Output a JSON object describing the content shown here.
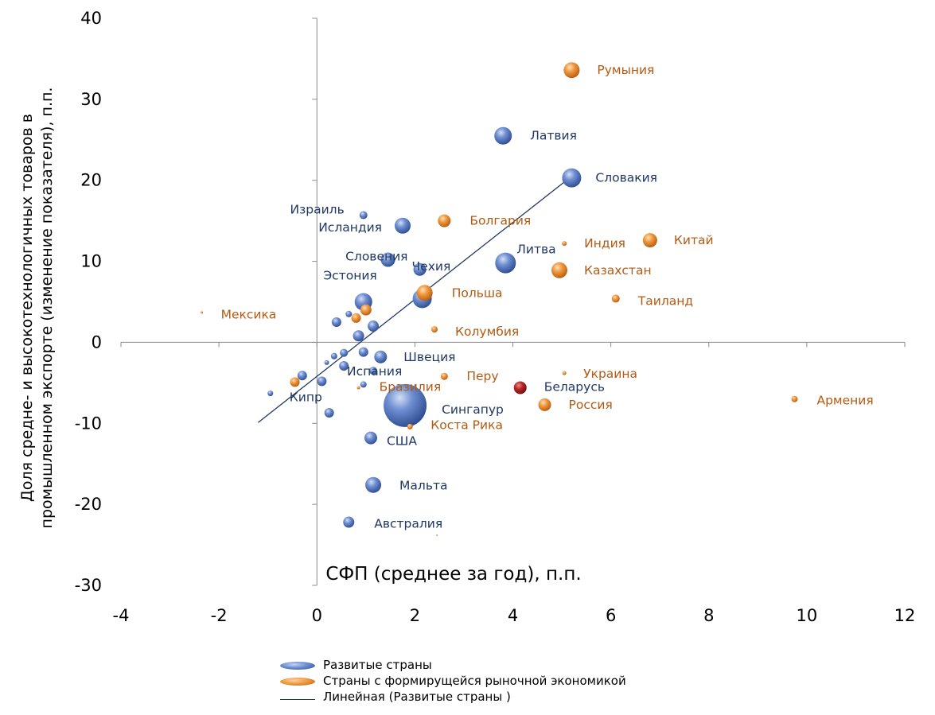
{
  "chart_data": {
    "type": "scatter",
    "xlabel": "СФП (среднее за год), п.п.",
    "ylabel_line1": "Доля средне- и высокотехнологичных товаров в",
    "ylabel_line2": "промышленном экспорте (изменение показателя), п.п.",
    "xlim": [
      -4,
      12
    ],
    "ylim": [
      -30,
      40
    ],
    "x_ticks": [
      "-4",
      "-2",
      "0",
      "2",
      "4",
      "6",
      "8",
      "10",
      "12"
    ],
    "y_ticks": [
      "40",
      "30",
      "20",
      "10",
      "0",
      "-10",
      "-20",
      "-30"
    ],
    "colors": {
      "developed": "#4f74c4",
      "developed_text": "#1f3864",
      "emerging": "#e8842a",
      "emerging_text": "#b35a12",
      "belarus": "#a11b1b",
      "trend": "#1f3864"
    },
    "series": [
      {
        "name": "Развитые страны",
        "points": [
          {
            "label": "Латвия",
            "x": 3.8,
            "y": 25.5,
            "size": 11
          },
          {
            "label": "Словакия",
            "x": 5.2,
            "y": 20.3,
            "size": 12
          },
          {
            "label": "Израиль",
            "x": 0.95,
            "y": 15.7,
            "size": 5
          },
          {
            "label": "Исландия",
            "x": 1.75,
            "y": 14.4,
            "size": 10
          },
          {
            "label": "Литва",
            "x": 3.85,
            "y": 9.8,
            "size": 13
          },
          {
            "label": "Чехия",
            "x": 2.1,
            "y": 9.0,
            "size": 8
          },
          {
            "label": "Словения",
            "x": 1.45,
            "y": 10.2,
            "size": 9
          },
          {
            "label": "Эстония",
            "x": 0.95,
            "y": 5.0,
            "size": 11
          },
          {
            "label": "",
            "x": 2.15,
            "y": 5.4,
            "size": 12
          },
          {
            "label": "",
            "x": 0.4,
            "y": 2.5,
            "size": 6
          },
          {
            "label": "",
            "x": 0.65,
            "y": 3.5,
            "size": 4
          },
          {
            "label": "",
            "x": 1.15,
            "y": 2.0,
            "size": 7
          },
          {
            "label": "",
            "x": 0.85,
            "y": 0.8,
            "size": 7
          },
          {
            "label": "Швеция",
            "x": 1.3,
            "y": -1.8,
            "size": 8
          },
          {
            "label": "",
            "x": 0.95,
            "y": -1.2,
            "size": 6
          },
          {
            "label": "",
            "x": 0.55,
            "y": -1.3,
            "size": 5
          },
          {
            "label": "",
            "x": 0.35,
            "y": -1.7,
            "size": 4
          },
          {
            "label": "",
            "x": 0.2,
            "y": -2.5,
            "size": 3
          },
          {
            "label": "",
            "x": 0.55,
            "y": -2.9,
            "size": 6
          },
          {
            "label": "Испания",
            "x": 1.15,
            "y": -3.5,
            "size": 5
          },
          {
            "label": "",
            "x": -0.3,
            "y": -4.1,
            "size": 6
          },
          {
            "label": "",
            "x": 0.1,
            "y": -4.8,
            "size": 6
          },
          {
            "label": "",
            "x": 0.95,
            "y": -5.2,
            "size": 4
          },
          {
            "label": "Кипр",
            "x": -0.95,
            "y": -6.3,
            "size": 3.5
          },
          {
            "label": "",
            "x": 0.25,
            "y": -8.7,
            "size": 6
          },
          {
            "label": "Сингапур",
            "x": 1.8,
            "y": -7.8,
            "size": 27
          },
          {
            "label": "США",
            "x": 1.1,
            "y": -11.8,
            "size": 8
          },
          {
            "label": "Мальта",
            "x": 1.15,
            "y": -17.6,
            "size": 10
          },
          {
            "label": "Австралия",
            "x": 0.65,
            "y": -22.2,
            "size": 7
          }
        ]
      },
      {
        "name": "Страны с формирущейся рыночной экономикой",
        "points": [
          {
            "label": "Румыния",
            "x": 5.2,
            "y": 33.6,
            "size": 10
          },
          {
            "label": "Болгария",
            "x": 2.6,
            "y": 15.0,
            "size": 8
          },
          {
            "label": "Индия",
            "x": 5.05,
            "y": 12.2,
            "size": 3
          },
          {
            "label": "Китай",
            "x": 6.8,
            "y": 12.6,
            "size": 9
          },
          {
            "label": "Казахстан",
            "x": 4.95,
            "y": 8.9,
            "size": 10
          },
          {
            "label": "Польша",
            "x": 2.2,
            "y": 6.1,
            "size": 10
          },
          {
            "label": "Таиланд",
            "x": 6.1,
            "y": 5.4,
            "size": 5
          },
          {
            "label": "Мексика",
            "x": -2.35,
            "y": 3.7,
            "size": 1.5
          },
          {
            "label": "",
            "x": 1.0,
            "y": 4.0,
            "size": 7
          },
          {
            "label": "",
            "x": 0.8,
            "y": 3.0,
            "size": 6
          },
          {
            "label": "Колумбия",
            "x": 2.4,
            "y": 1.6,
            "size": 4
          },
          {
            "label": "Украина",
            "x": 5.05,
            "y": -3.8,
            "size": 2.5
          },
          {
            "label": "Перу",
            "x": 2.6,
            "y": -4.2,
            "size": 4.5
          },
          {
            "label": "",
            "x": -0.45,
            "y": -4.9,
            "size": 6
          },
          {
            "label": "Бразилия",
            "x": 0.85,
            "y": -5.6,
            "size": 2
          },
          {
            "label": "Россия",
            "x": 4.65,
            "y": -7.7,
            "size": 8
          },
          {
            "label": "Армения",
            "x": 9.75,
            "y": -7.0,
            "size": 4
          },
          {
            "label": "Коста Рика",
            "x": 1.9,
            "y": -10.4,
            "size": 3.5
          },
          {
            "label": "",
            "x": 2.45,
            "y": -23.8,
            "size": 1
          }
        ]
      },
      {
        "name": "",
        "points": [
          {
            "label": "Беларусь",
            "x": 4.15,
            "y": -5.6,
            "size": 8
          }
        ]
      }
    ],
    "trendline": {
      "name": "Линейная (Развитые страны )",
      "x": [
        -1.2,
        5.2
      ],
      "y": [
        -9.9,
        20.5
      ]
    },
    "legend": {
      "position": "bottom",
      "items": [
        {
          "label": "Развитые страны",
          "kind": "developed"
        },
        {
          "label": "Страны с формирущейся рыночной экономикой",
          "kind": "emerging"
        },
        {
          "label": "Линейная (Развитые страны )",
          "kind": "line"
        }
      ]
    }
  }
}
